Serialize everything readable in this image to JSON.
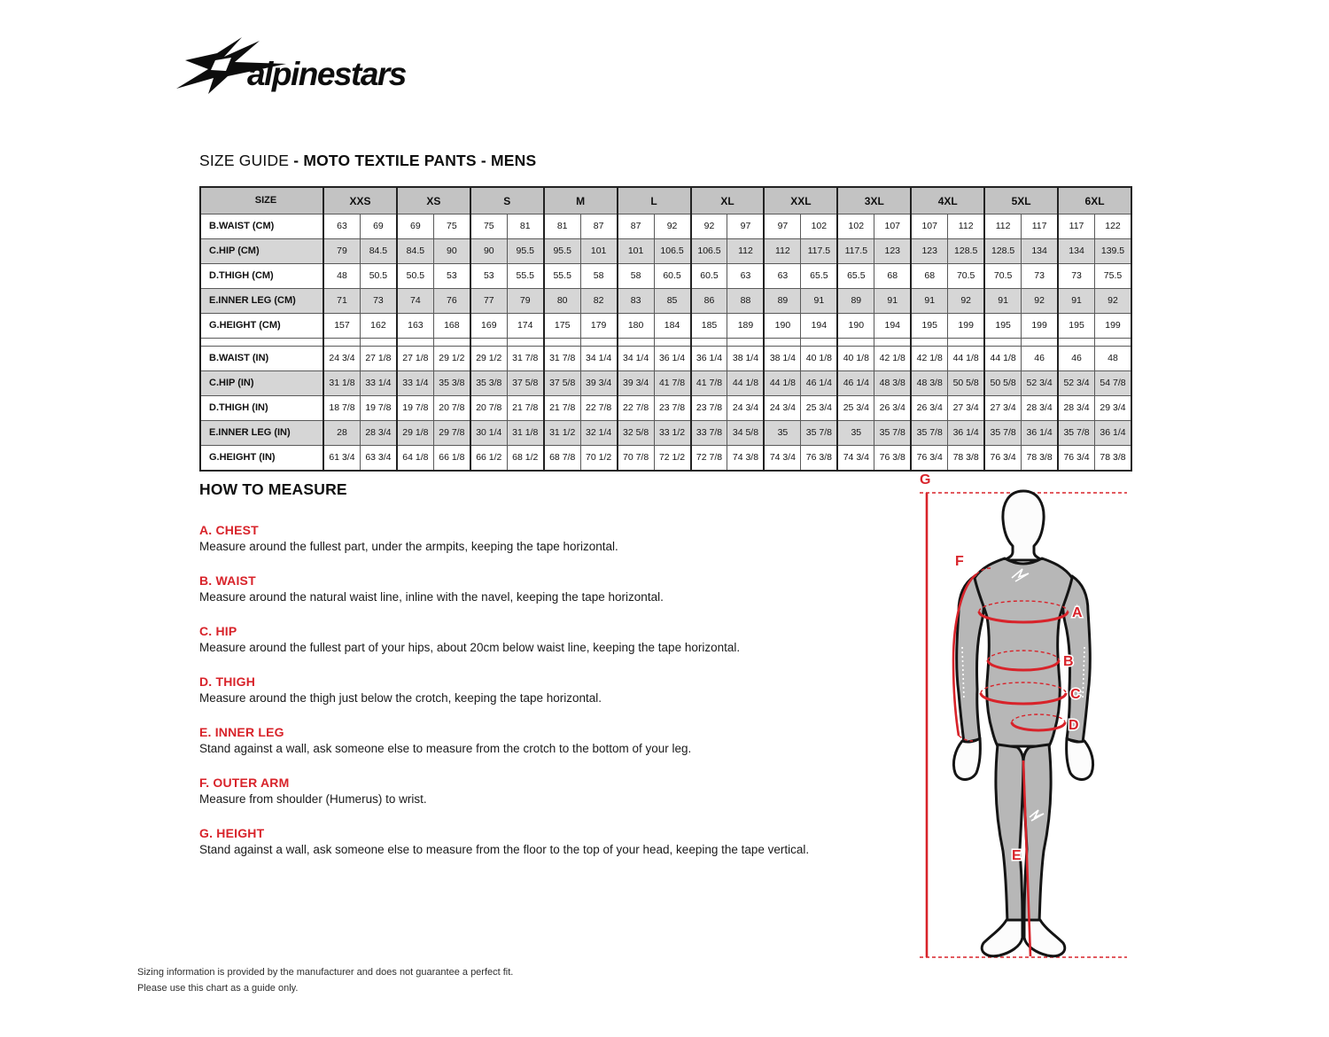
{
  "brand": {
    "logo_text": "alpinestars"
  },
  "title": {
    "prefix": "SIZE GUIDE ",
    "bold": "- MOTO TEXTILE PANTS - MENS"
  },
  "size_table": {
    "corner_label": "SIZE",
    "sizes": [
      "XXS",
      "XS",
      "S",
      "M",
      "L",
      "XL",
      "XXL",
      "3XL",
      "4XL",
      "5XL",
      "6XL"
    ],
    "cm_rows": [
      {
        "label": "B.WAIST (CM)",
        "values": [
          "63",
          "69",
          "69",
          "75",
          "75",
          "81",
          "81",
          "87",
          "87",
          "92",
          "92",
          "97",
          "97",
          "102",
          "102",
          "107",
          "107",
          "112",
          "112",
          "117",
          "117",
          "122"
        ]
      },
      {
        "label": "C.HIP (CM)",
        "values": [
          "79",
          "84.5",
          "84.5",
          "90",
          "90",
          "95.5",
          "95.5",
          "101",
          "101",
          "106.5",
          "106.5",
          "112",
          "112",
          "117.5",
          "117.5",
          "123",
          "123",
          "128.5",
          "128.5",
          "134",
          "134",
          "139.5"
        ]
      },
      {
        "label": "D.THIGH (CM)",
        "values": [
          "48",
          "50.5",
          "50.5",
          "53",
          "53",
          "55.5",
          "55.5",
          "58",
          "58",
          "60.5",
          "60.5",
          "63",
          "63",
          "65.5",
          "65.5",
          "68",
          "68",
          "70.5",
          "70.5",
          "73",
          "73",
          "75.5"
        ]
      },
      {
        "label": "E.INNER LEG (CM)",
        "values": [
          "71",
          "73",
          "74",
          "76",
          "77",
          "79",
          "80",
          "82",
          "83",
          "85",
          "86",
          "88",
          "89",
          "91",
          "89",
          "91",
          "91",
          "92",
          "91",
          "92",
          "91",
          "92"
        ]
      },
      {
        "label": "G.HEIGHT (CM)",
        "values": [
          "157",
          "162",
          "163",
          "168",
          "169",
          "174",
          "175",
          "179",
          "180",
          "184",
          "185",
          "189",
          "190",
          "194",
          "190",
          "194",
          "195",
          "199",
          "195",
          "199",
          "195",
          "199"
        ]
      }
    ],
    "in_rows": [
      {
        "label": "B.WAIST (IN)",
        "values": [
          "24 3/4",
          "27 1/8",
          "27 1/8",
          "29 1/2",
          "29 1/2",
          "31 7/8",
          "31 7/8",
          "34 1/4",
          "34 1/4",
          "36 1/4",
          "36 1/4",
          "38 1/4",
          "38 1/4",
          "40 1/8",
          "40 1/8",
          "42 1/8",
          "42 1/8",
          "44 1/8",
          "44 1/8",
          "46",
          "46",
          "48"
        ]
      },
      {
        "label": "C.HIP (IN)",
        "values": [
          "31 1/8",
          "33 1/4",
          "33 1/4",
          "35 3/8",
          "35 3/8",
          "37 5/8",
          "37 5/8",
          "39 3/4",
          "39 3/4",
          "41 7/8",
          "41 7/8",
          "44 1/8",
          "44 1/8",
          "46 1/4",
          "46 1/4",
          "48 3/8",
          "48 3/8",
          "50 5/8",
          "50 5/8",
          "52 3/4",
          "52 3/4",
          "54 7/8"
        ]
      },
      {
        "label": "D.THIGH (IN)",
        "values": [
          "18 7/8",
          "19 7/8",
          "19 7/8",
          "20 7/8",
          "20 7/8",
          "21 7/8",
          "21 7/8",
          "22 7/8",
          "22 7/8",
          "23 7/8",
          "23 7/8",
          "24 3/4",
          "24 3/4",
          "25 3/4",
          "25 3/4",
          "26 3/4",
          "26 3/4",
          "27 3/4",
          "27 3/4",
          "28 3/4",
          "28 3/4",
          "29 3/4"
        ]
      },
      {
        "label": "E.INNER LEG (IN)",
        "values": [
          "28",
          "28 3/4",
          "29 1/8",
          "29 7/8",
          "30 1/4",
          "31 1/8",
          "31 1/2",
          "32 1/4",
          "32 5/8",
          "33 1/2",
          "33 7/8",
          "34 5/8",
          "35",
          "35 7/8",
          "35",
          "35 7/8",
          "35 7/8",
          "36 1/4",
          "35 7/8",
          "36 1/4",
          "35 7/8",
          "36 1/4"
        ]
      },
      {
        "label": "G.HEIGHT (IN)",
        "values": [
          "61 3/4",
          "63 3/4",
          "64 1/8",
          "66 1/8",
          "66 1/2",
          "68 1/2",
          "68 7/8",
          "70 1/2",
          "70 7/8",
          "72 1/2",
          "72 7/8",
          "74 3/8",
          "74 3/4",
          "76 3/8",
          "74 3/4",
          "76 3/8",
          "76 3/4",
          "78 3/8",
          "76 3/4",
          "78 3/8",
          "76 3/4",
          "78 3/8"
        ]
      }
    ]
  },
  "how_to_measure": {
    "heading": "HOW TO MEASURE",
    "items": [
      {
        "title": "A. CHEST",
        "text": "Measure around the fullest part, under the armpits, keeping the tape horizontal."
      },
      {
        "title": "B. WAIST",
        "text": "Measure around the natural waist line, inline with the navel, keeping the tape horizontal."
      },
      {
        "title": "C. HIP",
        "text": "Measure around the fullest part of your hips, about 20cm below waist line, keeping the tape horizontal."
      },
      {
        "title": "D. THIGH",
        "text": "Measure around the thigh just below the crotch, keeping the tape horizontal."
      },
      {
        "title": "E. INNER LEG",
        "text": "Stand against a wall, ask someone else to measure from the crotch to the bottom of your leg."
      },
      {
        "title": "F. OUTER ARM",
        "text": "Measure from shoulder (Humerus) to wrist."
      },
      {
        "title": "G. HEIGHT",
        "text": "Stand against a wall, ask someone else to measure from the floor to the top of your head, keeping the tape vertical."
      }
    ]
  },
  "figure": {
    "labels": {
      "a": "A",
      "b": "B",
      "c": "C",
      "d": "D",
      "e": "E",
      "f": "F",
      "g": "G"
    }
  },
  "footer": {
    "line1": "Sizing information is provided by the manufacturer and does not guarantee a perfect fit.",
    "line2": "Please use this chart as a guide only."
  },
  "colors": {
    "accent": "#d8232a",
    "header_bg": "#c3c3c3",
    "row_alt_bg": "#d6d6d6",
    "figure_body": "#b7b7b7"
  }
}
